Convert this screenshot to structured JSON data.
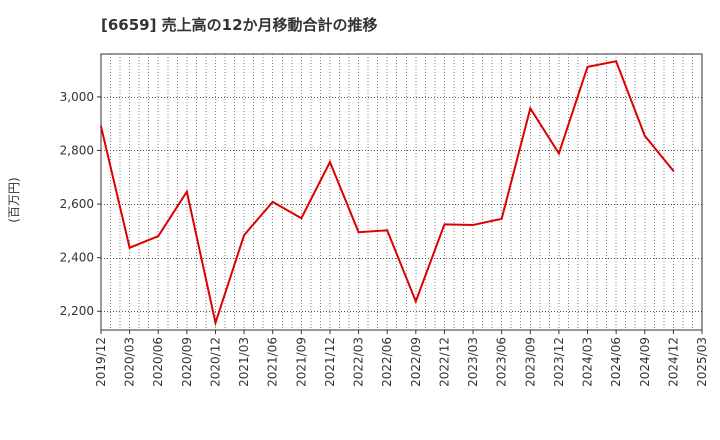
{
  "chart_data": {
    "type": "line",
    "title": "[6659]  売上高の12か月移動合計の推移",
    "ylabel": "(百万円)",
    "xlabel": "",
    "ylim": [
      2130,
      3160
    ],
    "yticks": [
      2200,
      2400,
      2600,
      2800,
      3000
    ],
    "ytick_labels": [
      "2,200",
      "2,400",
      "2,600",
      "2,800",
      "3,000"
    ],
    "xtick_labels": [
      "2019/12",
      "2020/03",
      "2020/06",
      "2020/09",
      "2020/12",
      "2021/03",
      "2021/06",
      "2021/09",
      "2021/12",
      "2022/03",
      "2022/06",
      "2022/09",
      "2022/12",
      "2023/03",
      "2023/06",
      "2023/09",
      "2023/12",
      "2024/03",
      "2024/06",
      "2024/09",
      "2024/12",
      "2025/03"
    ],
    "grid": true,
    "line_color": "#dd0000",
    "series": [
      {
        "name": "売上高の12か月移動合計",
        "x": [
          "2019/12",
          "2020/03",
          "2020/06",
          "2020/09",
          "2020/12",
          "2021/03",
          "2021/06",
          "2021/09",
          "2021/12",
          "2022/03",
          "2022/06",
          "2022/09",
          "2022/12",
          "2023/03",
          "2023/06",
          "2023/09",
          "2023/12",
          "2024/03",
          "2024/06",
          "2024/09",
          "2024/12"
        ],
        "values": [
          2890,
          2437,
          2480,
          2646,
          2157,
          2484,
          2608,
          2547,
          2757,
          2495,
          2502,
          2237,
          2524,
          2522,
          2545,
          2957,
          2789,
          3112,
          3133,
          2855,
          2724
        ]
      }
    ]
  }
}
